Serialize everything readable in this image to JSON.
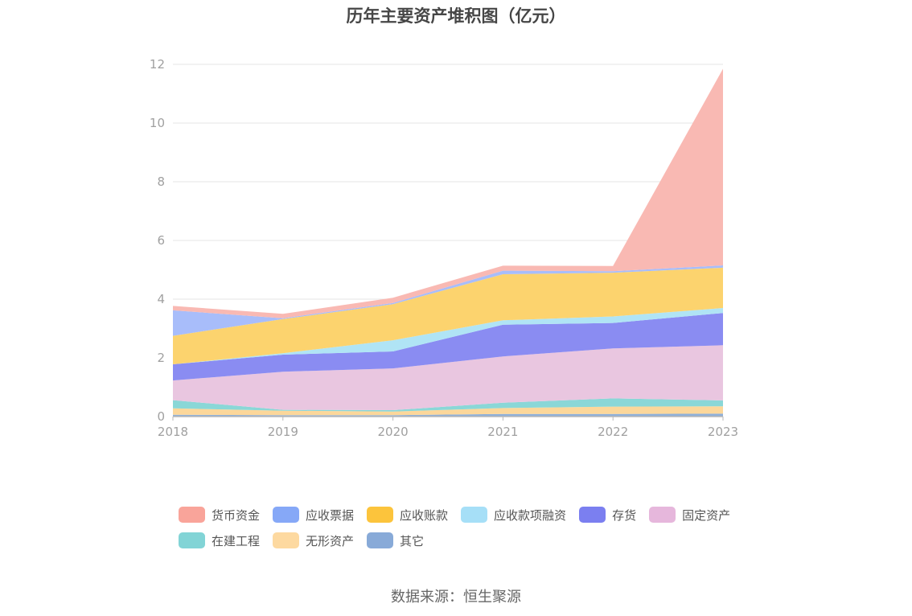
{
  "chart_data": {
    "type": "area",
    "stacked": true,
    "title": "历年主要资产堆积图（亿元）",
    "x": [
      "2018",
      "2019",
      "2020",
      "2021",
      "2022",
      "2023"
    ],
    "y_ticks": [
      "0",
      "2",
      "4",
      "6",
      "8",
      "10",
      "12"
    ],
    "ylim": [
      0,
      12
    ],
    "grid": true,
    "legend_position": "bottom",
    "series": [
      {
        "name": "其它",
        "color": "#8fb0d9",
        "values": [
          0.06,
          0.05,
          0.05,
          0.09,
          0.09,
          0.1
        ]
      },
      {
        "name": "无形资产",
        "color": "#fcd79a",
        "values": [
          0.22,
          0.15,
          0.12,
          0.2,
          0.25,
          0.25
        ]
      },
      {
        "name": "在建工程",
        "color": "#8ad7d7",
        "values": [
          0.28,
          0.03,
          0.05,
          0.18,
          0.28,
          0.2
        ]
      },
      {
        "name": "固定资产",
        "color": "#e9c6e0",
        "values": [
          0.67,
          1.3,
          1.42,
          1.58,
          1.7,
          1.88
        ]
      },
      {
        "name": "存货",
        "color": "#8a8cf2",
        "values": [
          0.55,
          0.58,
          0.58,
          1.08,
          0.87,
          1.1
        ]
      },
      {
        "name": "应收款项融资",
        "color": "#b0e4f5",
        "values": [
          0.0,
          0.05,
          0.38,
          0.15,
          0.22,
          0.17
        ]
      },
      {
        "name": "应收账款",
        "color": "#fcd36e",
        "values": [
          0.97,
          1.16,
          1.23,
          1.57,
          1.49,
          1.37
        ]
      },
      {
        "name": "应收票据",
        "color": "#a8bdfa",
        "values": [
          0.87,
          0.03,
          0.04,
          0.12,
          0.05,
          0.08
        ]
      },
      {
        "name": "货币资金",
        "color": "#f9b9b3",
        "values": [
          0.15,
          0.15,
          0.18,
          0.17,
          0.18,
          6.7
        ]
      }
    ]
  },
  "legend": [
    {
      "name": "货币资金",
      "color": "#f9a49a"
    },
    {
      "name": "应收票据",
      "color": "#86a8f7"
    },
    {
      "name": "应收账款",
      "color": "#fcc43c"
    },
    {
      "name": "应收款项融资",
      "color": "#a6dff7"
    },
    {
      "name": "存货",
      "color": "#7b7ff0"
    },
    {
      "name": "固定资产",
      "color": "#e6b7dc"
    },
    {
      "name": "在建工程",
      "color": "#82d4d6"
    },
    {
      "name": "无形资产",
      "color": "#fdd9a0"
    },
    {
      "name": "其它",
      "color": "#88aad8"
    }
  ],
  "source": "数据来源：恒生聚源"
}
